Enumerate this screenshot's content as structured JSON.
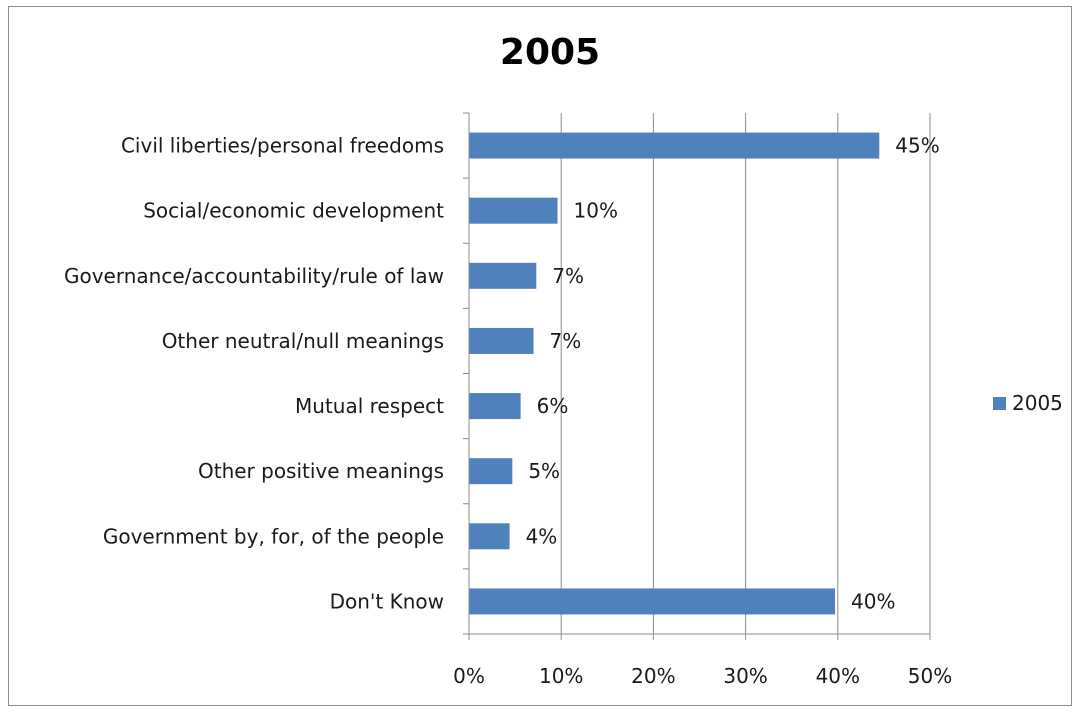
{
  "chart_data": {
    "type": "bar",
    "orientation": "horizontal",
    "title": "2005",
    "categories": [
      "Civil liberties/personal freedoms",
      "Social/economic development",
      "Governance/accountability/rule of law",
      "Other neutral/null meanings",
      "Mutual respect",
      "Other positive meanings",
      "Government by, for, of the people",
      "Don't Know"
    ],
    "series": [
      {
        "name": "2005",
        "values": [
          44.5,
          9.6,
          7.3,
          7.0,
          5.6,
          4.7,
          4.4,
          39.7
        ],
        "labels": [
          "45%",
          "10%",
          "7%",
          "7%",
          "6%",
          "5%",
          "4%",
          "40%"
        ],
        "color": "#4f81bd"
      }
    ],
    "xlim": [
      0,
      50
    ],
    "xticks": [
      "0%",
      "10%",
      "20%",
      "30%",
      "40%",
      "50%"
    ],
    "grid": true,
    "legend": "right",
    "xlabel": "",
    "ylabel": ""
  }
}
